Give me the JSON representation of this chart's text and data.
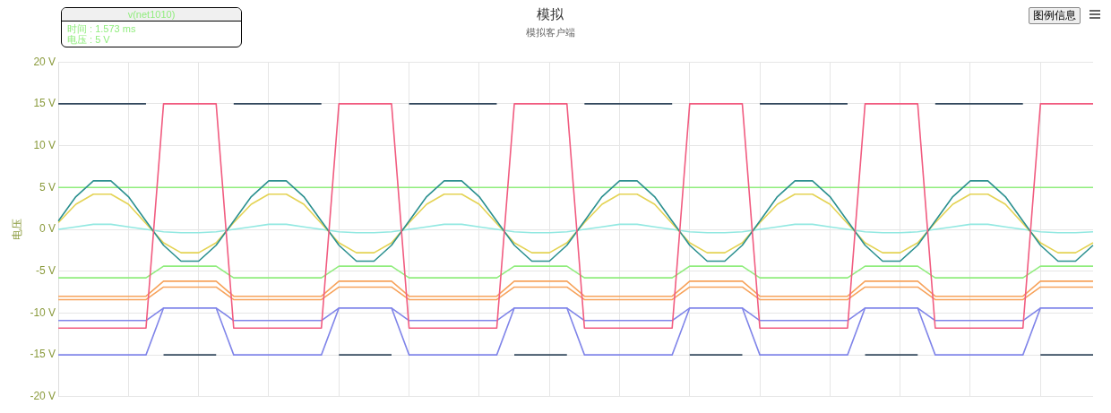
{
  "chart_data": {
    "type": "line",
    "title": "模拟",
    "subtitle": "模拟客户端",
    "ylabel": "电压",
    "annotations": [
      "v(net1010)",
      "时间 : 1.573 ms",
      "电压 : 5 V",
      "图例信息"
    ],
    "categories": [
      null,
      null,
      null,
      null,
      null,
      null,
      null,
      null,
      null,
      null,
      null,
      null,
      null,
      null,
      null,
      null,
      null,
      null,
      null,
      null,
      null,
      null,
      null,
      null,
      null,
      null,
      null,
      null,
      null,
      null,
      null,
      null,
      null,
      null,
      null,
      null,
      null,
      null,
      null,
      null,
      null,
      null,
      null,
      null,
      null,
      null,
      null,
      null,
      null,
      null,
      null,
      null,
      null,
      null,
      null,
      null,
      null,
      null,
      null,
      null
    ],
    "ylim": [
      -20,
      20
    ],
    "yticks": [
      {
        "value": -20,
        "label": "-20 V"
      },
      {
        "value": -15,
        "label": "-15 V"
      },
      {
        "value": -10,
        "label": "-10 V"
      },
      {
        "value": -5,
        "label": "-5 V"
      },
      {
        "value": 0,
        "label": "0 V"
      },
      {
        "value": 5,
        "label": "5 V"
      },
      {
        "value": 10,
        "label": "10 V"
      },
      {
        "value": 15,
        "label": "15 V"
      },
      {
        "value": 20,
        "label": "20 V"
      }
    ],
    "grid": true,
    "legend": false,
    "marker": "none",
    "line_style": "solid",
    "tick_labels": "y",
    "series": [
      {
        "color": "#34495e",
        "values": [
          15,
          15,
          15,
          15,
          15,
          15,
          null,
          null,
          null,
          null,
          15,
          15,
          15,
          15,
          15,
          15,
          null,
          null,
          null,
          null,
          15,
          15,
          15,
          15,
          15,
          15,
          null,
          null,
          null,
          null,
          15,
          15,
          15,
          15,
          15,
          15,
          null,
          null,
          null,
          null,
          15,
          15,
          15,
          15,
          15,
          15,
          null,
          null,
          null,
          null,
          15,
          15,
          15,
          15,
          15,
          15,
          null,
          null,
          null,
          null
        ]
      },
      {
        "color": "#34495e",
        "values": [
          null,
          null,
          null,
          null,
          null,
          null,
          -15,
          -15,
          -15,
          -15,
          null,
          null,
          null,
          null,
          null,
          null,
          -15,
          -15,
          -15,
          -15,
          null,
          null,
          null,
          null,
          null,
          null,
          -15,
          -15,
          -15,
          -15,
          null,
          null,
          null,
          null,
          null,
          null,
          -15,
          -15,
          -15,
          -15,
          null,
          null,
          null,
          null,
          null,
          null,
          -15,
          -15,
          -15,
          -15,
          null,
          null,
          null,
          null,
          null,
          null,
          -15,
          -15,
          -15,
          -15
        ]
      },
      {
        "color": "#8085e9",
        "values": [
          -15,
          -15,
          -15,
          -15,
          -15,
          -15,
          -9.4,
          -9.4,
          -9.4,
          -9.4,
          -15,
          -15,
          -15,
          -15,
          -15,
          -15,
          -9.4,
          -9.4,
          -9.4,
          -9.4,
          -15,
          -15,
          -15,
          -15,
          -15,
          -15,
          -9.4,
          -9.4,
          -9.4,
          -9.4,
          -15,
          -15,
          -15,
          -15,
          -15,
          -15,
          -9.4,
          -9.4,
          -9.4,
          -9.4,
          -15,
          -15,
          -15,
          -15,
          -15,
          -15,
          -9.4,
          -9.4,
          -9.4,
          -9.4,
          -15,
          -15,
          -15,
          -15,
          -15,
          -15,
          -9.4,
          -9.4,
          -9.4,
          -9.4
        ]
      },
      {
        "color": "#8085e9",
        "values": [
          -10.9,
          -10.9,
          -10.9,
          -10.9,
          -10.9,
          -10.9,
          -9.4,
          -9.4,
          -9.4,
          -9.4,
          -10.9,
          -10.9,
          -10.9,
          -10.9,
          -10.9,
          -10.9,
          -9.4,
          -9.4,
          -9.4,
          -9.4,
          -10.9,
          -10.9,
          -10.9,
          -10.9,
          -10.9,
          -10.9,
          -9.4,
          -9.4,
          -9.4,
          -9.4,
          -10.9,
          -10.9,
          -10.9,
          -10.9,
          -10.9,
          -10.9,
          -9.4,
          -9.4,
          -9.4,
          -9.4,
          -10.9,
          -10.9,
          -10.9,
          -10.9,
          -10.9,
          -10.9,
          -9.4,
          -9.4,
          -9.4,
          -9.4,
          -10.9,
          -10.9,
          -10.9,
          -10.9,
          -10.9,
          -10.9,
          -9.4,
          -9.4,
          -9.4,
          -9.4
        ]
      },
      {
        "color": "#f7a35c",
        "values": [
          -8.4,
          -8.4,
          -8.4,
          -8.4,
          -8.4,
          -8.4,
          -6.9,
          -6.9,
          -6.9,
          -6.9,
          -8.4,
          -8.4,
          -8.4,
          -8.4,
          -8.4,
          -8.4,
          -6.9,
          -6.9,
          -6.9,
          -6.9,
          -8.4,
          -8.4,
          -8.4,
          -8.4,
          -8.4,
          -8.4,
          -6.9,
          -6.9,
          -6.9,
          -6.9,
          -8.4,
          -8.4,
          -8.4,
          -8.4,
          -8.4,
          -8.4,
          -6.9,
          -6.9,
          -6.9,
          -6.9,
          -8.4,
          -8.4,
          -8.4,
          -8.4,
          -8.4,
          -8.4,
          -6.9,
          -6.9,
          -6.9,
          -6.9,
          -8.4,
          -8.4,
          -8.4,
          -8.4,
          -8.4,
          -8.4,
          -6.9,
          -6.9,
          -6.9,
          -6.9
        ]
      },
      {
        "color": "#f7a35c",
        "values": [
          -8,
          -8,
          -8,
          -8,
          -8,
          -8,
          -6.2,
          -6.2,
          -6.2,
          -6.2,
          -8,
          -8,
          -8,
          -8,
          -8,
          -8,
          -6.2,
          -6.2,
          -6.2,
          -6.2,
          -8,
          -8,
          -8,
          -8,
          -8,
          -8,
          -6.2,
          -6.2,
          -6.2,
          -6.2,
          -8,
          -8,
          -8,
          -8,
          -8,
          -8,
          -6.2,
          -6.2,
          -6.2,
          -6.2,
          -8,
          -8,
          -8,
          -8,
          -8,
          -8,
          -6.2,
          -6.2,
          -6.2,
          -6.2,
          -8,
          -8,
          -8,
          -8,
          -8,
          -8,
          -6.2,
          -6.2,
          -6.2,
          -6.2
        ]
      },
      {
        "color": "#90ed7d",
        "values": [
          -5.8,
          -5.8,
          -5.8,
          -5.8,
          -5.8,
          -5.8,
          -4.4,
          -4.4,
          -4.4,
          -4.4,
          -5.8,
          -5.8,
          -5.8,
          -5.8,
          -5.8,
          -5.8,
          -4.4,
          -4.4,
          -4.4,
          -4.4,
          -5.8,
          -5.8,
          -5.8,
          -5.8,
          -5.8,
          -5.8,
          -4.4,
          -4.4,
          -4.4,
          -4.4,
          -5.8,
          -5.8,
          -5.8,
          -5.8,
          -5.8,
          -5.8,
          -4.4,
          -4.4,
          -4.4,
          -4.4,
          -5.8,
          -5.8,
          -5.8,
          -5.8,
          -5.8,
          -5.8,
          -4.4,
          -4.4,
          -4.4,
          -4.4,
          -5.8,
          -5.8,
          -5.8,
          -5.8,
          -5.8,
          -5.8,
          -4.4,
          -4.4,
          -4.4,
          -4.4
        ]
      },
      {
        "color": "#90ed7d",
        "values": [
          5,
          5,
          5,
          5,
          5,
          5,
          5,
          5,
          5,
          5,
          5,
          5,
          5,
          5,
          5,
          5,
          5,
          5,
          5,
          5,
          5,
          5,
          5,
          5,
          5,
          5,
          5,
          5,
          5,
          5,
          5,
          5,
          5,
          5,
          5,
          5,
          5,
          5,
          5,
          5,
          5,
          5,
          5,
          5,
          5,
          5,
          5,
          5,
          5,
          5,
          5,
          5,
          5,
          5,
          5,
          5,
          5,
          5,
          5,
          5
        ]
      },
      {
        "color": "#91e8e1",
        "values": [
          0,
          0.3,
          0.6,
          0.6,
          0.3,
          0,
          -0.3,
          -0.4,
          -0.4,
          -0.3,
          0,
          0.3,
          0.6,
          0.6,
          0.3,
          0,
          -0.3,
          -0.4,
          -0.4,
          -0.3,
          0,
          0.3,
          0.6,
          0.6,
          0.3,
          0,
          -0.3,
          -0.4,
          -0.4,
          -0.3,
          0,
          0.3,
          0.6,
          0.6,
          0.3,
          0,
          -0.3,
          -0.4,
          -0.4,
          -0.3,
          0,
          0.3,
          0.6,
          0.6,
          0.3,
          0,
          -0.3,
          -0.4,
          -0.4,
          -0.3,
          0,
          0.3,
          0.6,
          0.6,
          0.3,
          0,
          -0.3,
          -0.4,
          -0.4,
          -0.3
        ]
      },
      {
        "color": "#e4d354",
        "values": [
          0.8,
          3,
          4.2,
          4.2,
          3,
          0.7,
          -1.6,
          -2.8,
          -2.8,
          -1.6,
          0.8,
          3,
          4.2,
          4.2,
          3,
          0.7,
          -1.6,
          -2.8,
          -2.8,
          -1.6,
          0.8,
          3,
          4.2,
          4.2,
          3,
          0.7,
          -1.6,
          -2.8,
          -2.8,
          -1.6,
          0.8,
          3,
          4.2,
          4.2,
          3,
          0.7,
          -1.6,
          -2.8,
          -2.8,
          -1.6,
          0.8,
          3,
          4.2,
          4.2,
          3,
          0.7,
          -1.6,
          -2.8,
          -2.8,
          -1.6,
          0.8,
          3,
          4.2,
          4.2,
          3,
          0.7,
          -1.6,
          -2.8,
          -2.8,
          -1.6
        ]
      },
      {
        "color": "#2b908f",
        "values": [
          1,
          3.9,
          5.8,
          5.8,
          3.9,
          1,
          -1.9,
          -3.8,
          -3.8,
          -1.9,
          1,
          3.9,
          5.8,
          5.8,
          3.9,
          1,
          -1.9,
          -3.8,
          -3.8,
          -1.9,
          1,
          3.9,
          5.8,
          5.8,
          3.9,
          1,
          -1.9,
          -3.8,
          -3.8,
          -1.9,
          1,
          3.9,
          5.8,
          5.8,
          3.9,
          1,
          -1.9,
          -3.8,
          -3.8,
          -1.9,
          1,
          3.9,
          5.8,
          5.8,
          3.9,
          1,
          -1.9,
          -3.8,
          -3.8,
          -1.9,
          1,
          3.9,
          5.8,
          5.8,
          3.9,
          1,
          -1.9,
          -3.8,
          -3.8,
          -1.9
        ]
      },
      {
        "color": "#f15c80",
        "values": [
          -11.8,
          -11.8,
          -11.8,
          -11.8,
          -11.8,
          -11.8,
          15,
          15,
          15,
          15,
          -11.8,
          -11.8,
          -11.8,
          -11.8,
          -11.8,
          -11.8,
          15,
          15,
          15,
          15,
          -11.8,
          -11.8,
          -11.8,
          -11.8,
          -11.8,
          -11.8,
          15,
          15,
          15,
          15,
          -11.8,
          -11.8,
          -11.8,
          -11.8,
          -11.8,
          -11.8,
          15,
          15,
          15,
          15,
          -11.8,
          -11.8,
          -11.8,
          -11.8,
          -11.8,
          -11.8,
          15,
          15,
          15,
          15,
          -11.8,
          -11.8,
          -11.8,
          -11.8,
          -11.8,
          -11.8,
          15,
          15,
          15,
          15
        ]
      }
    ]
  }
}
